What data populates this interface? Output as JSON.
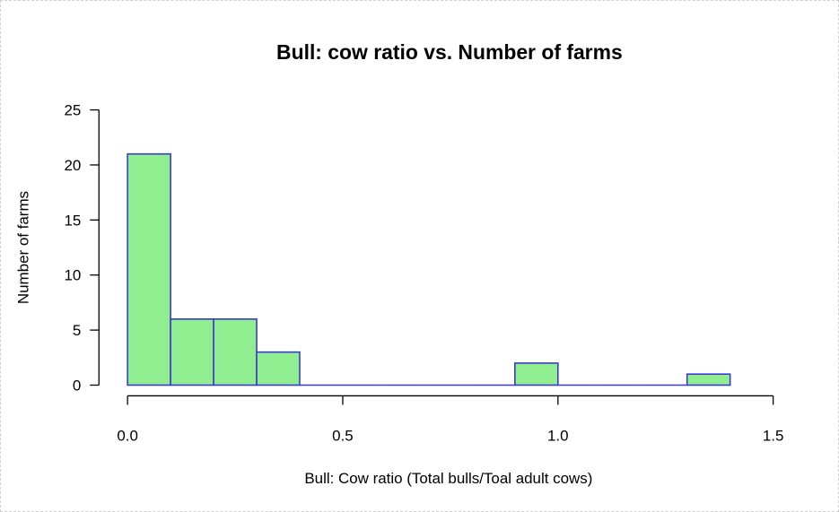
{
  "chart_data": {
    "type": "bar",
    "title": "Bull: cow ratio vs. Number of farms",
    "xlabel": "Bull: Cow ratio (Total bulls/Toal adult cows)",
    "ylabel": "Number of farms",
    "xlim": [
      0,
      1.5
    ],
    "ylim": [
      0,
      25
    ],
    "x_ticks": [
      "0.0",
      "0.5",
      "1.0",
      "1.5"
    ],
    "y_ticks": [
      "0",
      "5",
      "10",
      "15",
      "20",
      "25"
    ],
    "bins": [
      {
        "from": 0.0,
        "to": 0.1,
        "count": 21
      },
      {
        "from": 0.1,
        "to": 0.2,
        "count": 6
      },
      {
        "from": 0.2,
        "to": 0.3,
        "count": 6
      },
      {
        "from": 0.3,
        "to": 0.4,
        "count": 3
      },
      {
        "from": 0.4,
        "to": 0.5,
        "count": 0
      },
      {
        "from": 0.5,
        "to": 0.6,
        "count": 0
      },
      {
        "from": 0.6,
        "to": 0.7,
        "count": 0
      },
      {
        "from": 0.7,
        "to": 0.8,
        "count": 0
      },
      {
        "from": 0.8,
        "to": 0.9,
        "count": 0
      },
      {
        "from": 0.9,
        "to": 1.0,
        "count": 2
      },
      {
        "from": 1.0,
        "to": 1.1,
        "count": 0
      },
      {
        "from": 1.1,
        "to": 1.2,
        "count": 0
      },
      {
        "from": 1.2,
        "to": 1.3,
        "count": 0
      },
      {
        "from": 1.3,
        "to": 1.4,
        "count": 1
      }
    ],
    "grid": false,
    "colors": {
      "fill": "#90EE90",
      "stroke": "#3a3acd"
    }
  }
}
